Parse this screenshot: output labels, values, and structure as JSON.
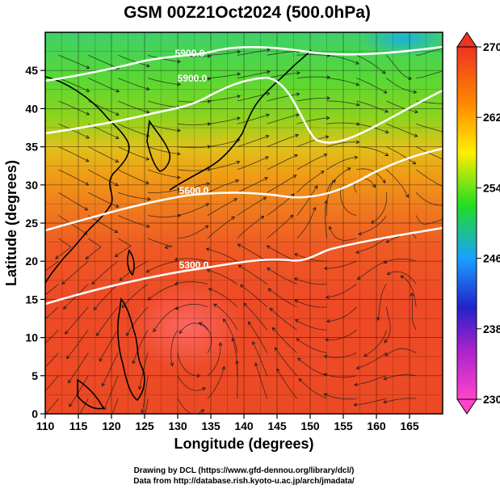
{
  "title": "GSM 00Z21Oct2024 (500.0hPa)",
  "xaxis": {
    "label": "Longitude (degrees)",
    "range": [
      110,
      170
    ],
    "ticks": [
      110,
      115,
      120,
      125,
      130,
      135,
      140,
      145,
      150,
      155,
      160,
      165
    ]
  },
  "yaxis": {
    "label": "Latitude  (degrees)",
    "range": [
      0,
      50
    ],
    "ticks": [
      0,
      5,
      10,
      15,
      20,
      25,
      30,
      35,
      40,
      45
    ]
  },
  "colorbar": {
    "range": [
      230,
      270
    ],
    "labels": [
      270,
      262,
      254,
      246,
      238,
      230
    ],
    "colors": [
      "#ff44cc",
      "#2222cc",
      "#1aa0ff",
      "#22dd22",
      "#ffee00",
      "#ff8800",
      "#ee3322"
    ]
  },
  "contours": [
    {
      "label": "5300.0"
    },
    {
      "label": "5600.0"
    },
    {
      "label": "5900.0"
    },
    {
      "label": "5900.0"
    }
  ],
  "credits": {
    "line1": "Drawing by DCL (https://www.gfd-dennou.org/library/dcl/)",
    "line2": "Data from http://database.rish.kyoto-u.ac.jp/arch/jmadata/"
  }
}
